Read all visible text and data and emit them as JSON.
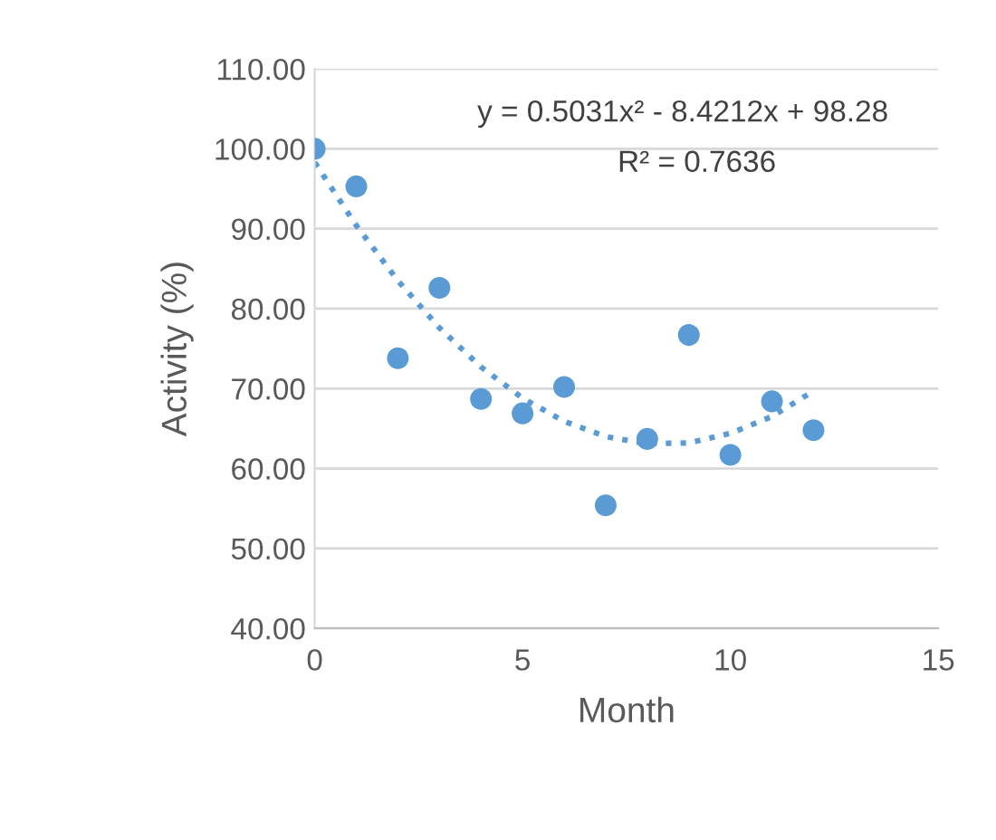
{
  "chart_data": {
    "type": "scatter",
    "xlabel": "Month",
    "ylabel": "Activity (%)",
    "annotations": [
      "y = 0.5031x² - 8.4212x + 98.28",
      "R² = 0.7636"
    ],
    "series": [
      {
        "color": "#5b9bd5",
        "marker": "circle",
        "x": [
          0,
          1,
          2,
          3,
          4,
          5,
          6,
          7,
          8,
          9,
          10,
          11,
          12
        ],
        "values": [
          100.0,
          95.3,
          73.8,
          82.6,
          68.7,
          66.9,
          70.2,
          55.4,
          63.7,
          76.7,
          61.7,
          68.4,
          64.8
        ]
      },
      {
        "type": "line",
        "marker": "none",
        "line_style": "dotted",
        "color": "#5b9bd5",
        "x": [
          0,
          1,
          2,
          3,
          4,
          5,
          6,
          7,
          8,
          9,
          10,
          11,
          12
        ],
        "values": [
          98.3,
          90.4,
          83.5,
          77.6,
          72.7,
          68.8,
          65.9,
          64.0,
          63.1,
          63.2,
          64.4,
          66.5,
          69.7
        ]
      }
    ],
    "xlim": [
      0,
      15
    ],
    "xticks": [
      0,
      5,
      10,
      15
    ],
    "ylim": [
      40,
      110
    ],
    "yticks": [
      {
        "value": 40,
        "label": "40.00"
      },
      {
        "value": 50,
        "label": "50.00"
      },
      {
        "value": 60,
        "label": "60.00"
      },
      {
        "value": 70,
        "label": "70.00"
      },
      {
        "value": 80,
        "label": "80.00"
      },
      {
        "value": 90,
        "label": "90.00"
      },
      {
        "value": 100,
        "label": "100.00"
      },
      {
        "value": 110,
        "label": "110.00"
      }
    ],
    "grid": "y",
    "legend": false
  }
}
